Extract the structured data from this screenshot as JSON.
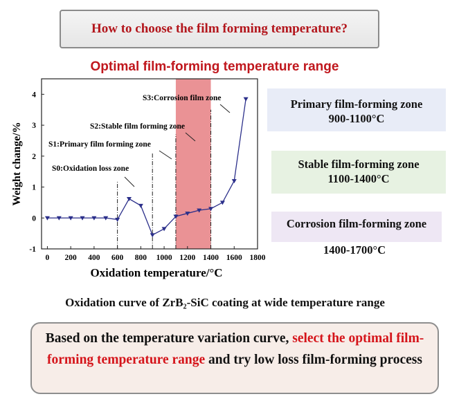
{
  "header": {
    "question": "How to choose the film forming temperature?"
  },
  "optimal_title": "Optimal film-forming temperature range",
  "zones": {
    "primary_name": "Primary film-forming zone",
    "primary_range": "900-1100°C",
    "stable_name": "Stable film-forming zone",
    "stable_range": "1100-1400°C",
    "corrosion_name": "Corrosion film-forming zone",
    "corrosion_range": "1400-1700°C"
  },
  "caption": "Oxidation curve of ZrB₂-SiC coating at wide temperature range",
  "footer": {
    "part1": "Based on the temperature variation curve, ",
    "part2": "select the optimal film-forming temperature range",
    "part3": " and try low loss film-forming process"
  },
  "colors": {
    "title_red": "#c0171d",
    "series": "#2b2f8a",
    "highlight": "#e8868a"
  },
  "chart_data": {
    "type": "line",
    "title": "",
    "xlabel": "Oxidation temperature/°C",
    "ylabel": "Weight change/%",
    "xlim": [
      -50,
      1800
    ],
    "ylim": [
      -1,
      4.5
    ],
    "x_ticks": [
      0,
      200,
      400,
      600,
      800,
      1000,
      1200,
      1400,
      1600,
      1800
    ],
    "y_ticks": [
      -1,
      0,
      1,
      2,
      3,
      4
    ],
    "grid": false,
    "series": [
      {
        "name": "",
        "x": [
          0,
          100,
          200,
          300,
          400,
          500,
          600,
          700,
          800,
          900,
          1000,
          1100,
          1200,
          1300,
          1400,
          1500,
          1600,
          1700
        ],
        "y": [
          0,
          0,
          0,
          0,
          0,
          0,
          -0.05,
          0.62,
          0.4,
          -0.55,
          -0.35,
          0.05,
          0.15,
          0.25,
          0.3,
          0.5,
          1.2,
          3.85
        ]
      }
    ],
    "highlight_range": [
      1100,
      1400
    ],
    "vlines": [
      600,
      900,
      1100,
      1400
    ],
    "annotations": [
      {
        "text": "S0:Oxidation loss zone",
        "x": 600,
        "y": 1.4
      },
      {
        "text": "S1:Primary film forming zone",
        "x": 900,
        "y": 2.3
      },
      {
        "text": "S2:Stable film forming zone",
        "x": 1100,
        "y": 3.0
      },
      {
        "text": "S3:Corrosion film zone",
        "x": 1400,
        "y": 4.0
      }
    ]
  }
}
